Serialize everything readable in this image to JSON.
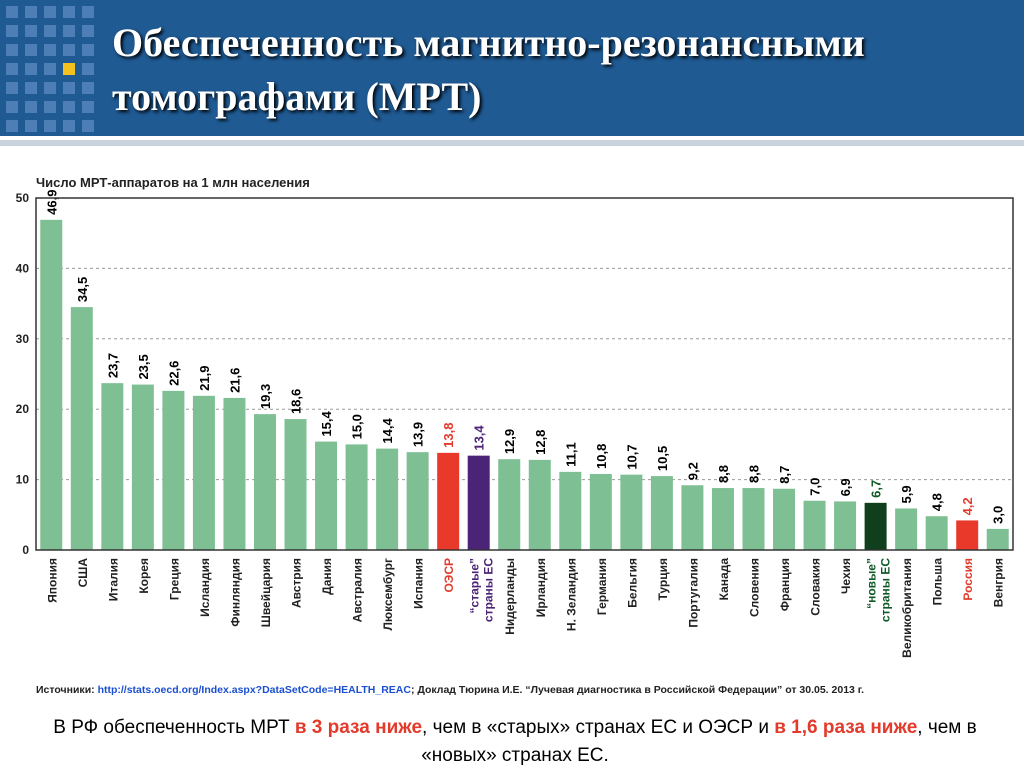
{
  "slide": {
    "title_line1": "Обеспеченность магнитно-резонансными",
    "title_line2": "томографами (МРТ)"
  },
  "chart_data": {
    "type": "bar",
    "title": "Число МРТ-аппаратов на 1 млн населения",
    "ylim": [
      0,
      50
    ],
    "yticks": [
      0,
      10,
      20,
      30,
      40,
      50
    ],
    "grid": true,
    "categories": [
      {
        "label": "Япония",
        "value": 46.9,
        "display": "46,9",
        "kind": "normal"
      },
      {
        "label": "США",
        "value": 34.5,
        "display": "34,5",
        "kind": "normal"
      },
      {
        "label": "Италия",
        "value": 23.7,
        "display": "23,7",
        "kind": "normal"
      },
      {
        "label": "Корея",
        "value": 23.5,
        "display": "23,5",
        "kind": "normal"
      },
      {
        "label": "Греция",
        "value": 22.6,
        "display": "22,6",
        "kind": "normal"
      },
      {
        "label": "Исландия",
        "value": 21.9,
        "display": "21,9",
        "kind": "normal"
      },
      {
        "label": "Финляндия",
        "value": 21.6,
        "display": "21,6",
        "kind": "normal"
      },
      {
        "label": "Швейцария",
        "value": 19.3,
        "display": "19,3",
        "kind": "normal"
      },
      {
        "label": "Австрия",
        "value": 18.6,
        "display": "18,6",
        "kind": "normal"
      },
      {
        "label": "Дания",
        "value": 15.4,
        "display": "15,4",
        "kind": "normal"
      },
      {
        "label": "Австралия",
        "value": 15.0,
        "display": "15,0",
        "kind": "normal"
      },
      {
        "label": "Люксембург",
        "value": 14.4,
        "display": "14,4",
        "kind": "normal"
      },
      {
        "label": "Испания",
        "value": 13.9,
        "display": "13,9",
        "kind": "normal"
      },
      {
        "label": "ОЭСР",
        "value": 13.8,
        "display": "13,8",
        "kind": "oecd"
      },
      {
        "label": "“старые” страны ЕС",
        "value": 13.4,
        "display": "13,4",
        "kind": "old_eu"
      },
      {
        "label": "Нидерланды",
        "value": 12.9,
        "display": "12,9",
        "kind": "normal"
      },
      {
        "label": "Ирландия",
        "value": 12.8,
        "display": "12,8",
        "kind": "normal"
      },
      {
        "label": "Н. Зеландия",
        "value": 11.1,
        "display": "11,1",
        "kind": "normal"
      },
      {
        "label": "Германия",
        "value": 10.8,
        "display": "10,8",
        "kind": "normal"
      },
      {
        "label": "Бельгия",
        "value": 10.7,
        "display": "10,7",
        "kind": "normal"
      },
      {
        "label": "Турция",
        "value": 10.5,
        "display": "10,5",
        "kind": "normal"
      },
      {
        "label": "Португалия",
        "value": 9.2,
        "display": "9,2",
        "kind": "normal"
      },
      {
        "label": "Канада",
        "value": 8.8,
        "display": "8,8",
        "kind": "normal"
      },
      {
        "label": "Словения",
        "value": 8.8,
        "display": "8,8",
        "kind": "normal"
      },
      {
        "label": "Франция",
        "value": 8.7,
        "display": "8,7",
        "kind": "normal"
      },
      {
        "label": "Словакия",
        "value": 7.0,
        "display": "7,0",
        "kind": "normal"
      },
      {
        "label": "Чехия",
        "value": 6.9,
        "display": "6,9",
        "kind": "normal"
      },
      {
        "label": "“новые” страны ЕС",
        "value": 6.7,
        "display": "6,7",
        "kind": "new_eu"
      },
      {
        "label": "Великобритания",
        "value": 5.9,
        "display": "5,9",
        "kind": "normal"
      },
      {
        "label": "Польша",
        "value": 4.8,
        "display": "4,8",
        "kind": "normal"
      },
      {
        "label": "Россия",
        "value": 4.2,
        "display": "4,2",
        "kind": "russia"
      },
      {
        "label": "Венгрия",
        "value": 3.0,
        "display": "3,0",
        "kind": "normal"
      }
    ],
    "source_prefix": "Источники: ",
    "source_link": "http://stats.oecd.org/Index.aspx?DataSetCode=HEALTH_REAC",
    "source_rest": "; Доклад Тюрина И.Е. “Лучевая диагностика в Российской Федерации” от 30.05. 2013 г."
  },
  "colors": {
    "normal": "#7fbf94",
    "oecd": "#e8392b",
    "old_eu": "#4b2377",
    "new_eu": "#0f3f1d",
    "russia": "#e8392b",
    "normal_text": "#000000",
    "oecd_text": "#e23a2b",
    "old_eu_text": "#4b2377",
    "new_eu_text": "#0f5a27",
    "russia_text": "#e23a2b",
    "link": "#1a4fd1"
  },
  "footer": {
    "part1": "В РФ обеспеченность МРТ ",
    "part2": "в 3 раза ниже",
    "part3": ", чем в «старых» странах ЕС и ОЭСР и ",
    "part4": "в 1,6 раза ниже",
    "part5": ", чем в «новых» странах ЕС."
  }
}
